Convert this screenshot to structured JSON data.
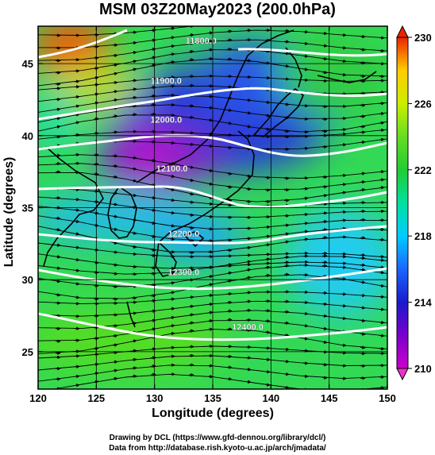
{
  "title": "MSM 03Z20May2023 (200.0hPa)",
  "xlabel": "Longitude (degrees)",
  "ylabel": "Latitude  (degrees)",
  "credits": {
    "line1": "Drawing by DCL (https://www.gfd-dennou.org/library/dcl/)",
    "line2": "Data from http://database.rish.kyoto-u.ac.jp/arch/jmadata/"
  },
  "chart_data": {
    "type": "heatmap",
    "x_axis": {
      "range": [
        120,
        150
      ],
      "ticks": [
        120,
        125,
        130,
        135,
        140,
        145,
        150
      ]
    },
    "y_axis": {
      "range": [
        22.4,
        47.6
      ],
      "ticks": [
        25,
        30,
        35,
        40,
        45
      ]
    },
    "colorbar": {
      "range": [
        210,
        230
      ],
      "ticks": [
        210,
        214,
        218,
        222,
        226,
        230
      ],
      "colors": [
        "#cc00cc",
        "#7a00cc",
        "#1a1acc",
        "#1a66ff",
        "#00ccff",
        "#00e0a0",
        "#22cc33",
        "#66dd22",
        "#ccee00",
        "#ffcc00",
        "#ff6600",
        "#ee2200"
      ]
    },
    "contours": [
      {
        "label": "11800.0",
        "label_lon": 134.0,
        "label_lat": 46.4
      },
      {
        "label": "11900.0",
        "label_lon": 131.0,
        "label_lat": 43.6
      },
      {
        "label": "12000.0",
        "label_lon": 131.0,
        "label_lat": 40.9
      },
      {
        "label": "12100.0",
        "label_lon": 131.5,
        "label_lat": 37.5
      },
      {
        "label": "12200.0",
        "label_lon": 132.5,
        "label_lat": 33.0
      },
      {
        "label": "12300.0",
        "label_lon": 132.5,
        "label_lat": 30.3
      },
      {
        "label": "12400.0",
        "label_lon": 138.0,
        "label_lat": 26.5
      }
    ]
  }
}
